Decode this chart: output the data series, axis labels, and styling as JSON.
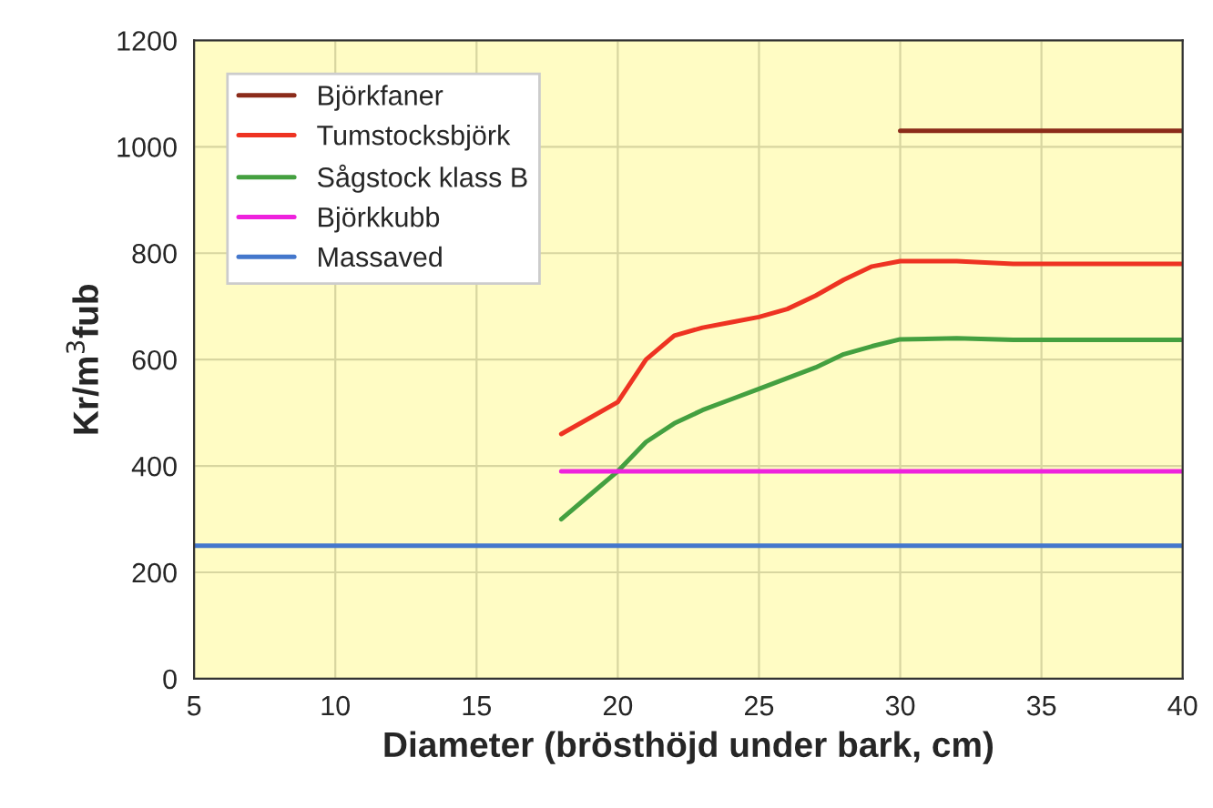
{
  "chart_data": {
    "type": "line",
    "xlabel": "Diameter (brösthöjd under bark, cm)",
    "ylabel": "Kr/m$^{3}$fub",
    "xlim": [
      5,
      40
    ],
    "xticks": [
      5,
      10,
      15,
      20,
      25,
      30,
      35,
      40
    ],
    "ylim": [
      0,
      1200
    ],
    "yticks": [
      0,
      200,
      400,
      600,
      800,
      1000,
      1200
    ],
    "grid": true,
    "legend": "top left",
    "marker": "none",
    "line_style": "solid",
    "series": [
      {
        "name": "Björkfaner",
        "color": "#8b2b1a",
        "x": [
          30,
          40
        ],
        "values": [
          1030,
          1030
        ]
      },
      {
        "name": "Tumstocksbjörk",
        "color": "#ee3322",
        "x": [
          18,
          19,
          20,
          21,
          22,
          23,
          24,
          25,
          26,
          27,
          28,
          29,
          30,
          32,
          34,
          40
        ],
        "values": [
          460,
          490,
          520,
          600,
          645,
          660,
          670,
          680,
          695,
          720,
          750,
          775,
          785,
          785,
          780,
          780
        ]
      },
      {
        "name": "Sågstock klass B",
        "color": "#44a040",
        "x": [
          18,
          19,
          20,
          21,
          22,
          23,
          24,
          25,
          26,
          27,
          28,
          29,
          30,
          32,
          34,
          40
        ],
        "values": [
          300,
          345,
          390,
          445,
          480,
          505,
          525,
          545,
          565,
          585,
          610,
          625,
          638,
          640,
          637,
          637
        ]
      },
      {
        "name": "Björkkubb",
        "color": "#ee22dd",
        "x": [
          18,
          40
        ],
        "values": [
          390,
          390
        ]
      },
      {
        "name": "Massaved",
        "color": "#4477cc",
        "x": [
          5,
          40
        ],
        "values": [
          250,
          250
        ]
      }
    ]
  }
}
